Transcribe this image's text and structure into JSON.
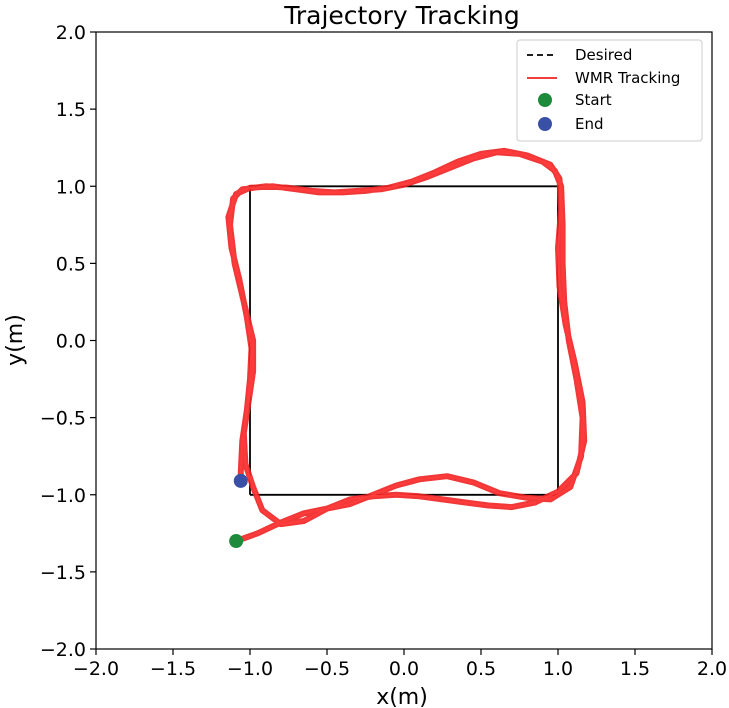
{
  "chart_data": {
    "type": "line",
    "title": "Trajectory Tracking",
    "xlabel": "x(m)",
    "ylabel": "y(m)",
    "xlim": [
      -2.0,
      2.0
    ],
    "ylim": [
      -2.0,
      2.0
    ],
    "xticks": [
      "−2.0",
      "−1.5",
      "−1.0",
      "−0.5",
      "0.0",
      "0.5",
      "1.0",
      "1.5",
      "2.0"
    ],
    "yticks": [
      "2.0",
      "1.5",
      "1.0",
      "0.5",
      "0.0",
      "−0.5",
      "−1.0",
      "−1.5",
      "−2.0"
    ],
    "grid": false,
    "legend_position": "top-right",
    "series": [
      {
        "name": "Desired",
        "style": "dashed",
        "color": "#000000",
        "points": [
          [
            -1.0,
            -1.0
          ],
          [
            1.0,
            -1.0
          ],
          [
            1.0,
            1.0
          ],
          [
            -1.0,
            1.0
          ],
          [
            -1.0,
            -1.0
          ]
        ]
      },
      {
        "name": "WMR Tracking",
        "style": "solid",
        "color": "#ee2222",
        "points": [
          [
            -1.09,
            -1.3
          ],
          [
            -0.95,
            -1.25
          ],
          [
            -0.8,
            -1.18
          ],
          [
            -0.65,
            -1.12
          ],
          [
            -0.5,
            -1.09
          ],
          [
            -0.35,
            -1.06
          ],
          [
            -0.2,
            -1.0
          ],
          [
            -0.05,
            -0.94
          ],
          [
            0.1,
            -0.9
          ],
          [
            0.28,
            -0.88
          ],
          [
            0.45,
            -0.92
          ],
          [
            0.62,
            -0.99
          ],
          [
            0.8,
            -1.02
          ],
          [
            0.95,
            -1.03
          ],
          [
            1.08,
            -0.95
          ],
          [
            1.15,
            -0.75
          ],
          [
            1.16,
            -0.5
          ],
          [
            1.12,
            -0.25
          ],
          [
            1.07,
            0.0
          ],
          [
            1.04,
            0.25
          ],
          [
            1.03,
            0.5
          ],
          [
            1.03,
            0.75
          ],
          [
            1.02,
            1.0
          ],
          [
            0.98,
            1.1
          ],
          [
            0.9,
            1.16
          ],
          [
            0.75,
            1.21
          ],
          [
            0.6,
            1.22
          ],
          [
            0.45,
            1.18
          ],
          [
            0.3,
            1.12
          ],
          [
            0.15,
            1.06
          ],
          [
            0.0,
            1.01
          ],
          [
            -0.15,
            0.98
          ],
          [
            -0.3,
            0.97
          ],
          [
            -0.45,
            0.96
          ],
          [
            -0.6,
            0.97
          ],
          [
            -0.75,
            0.99
          ],
          [
            -0.9,
            1.0
          ],
          [
            -1.05,
            0.98
          ],
          [
            -1.11,
            0.92
          ],
          [
            -1.13,
            0.75
          ],
          [
            -1.1,
            0.5
          ],
          [
            -1.04,
            0.25
          ],
          [
            -0.98,
            0.0
          ],
          [
            -0.98,
            -0.2
          ],
          [
            -1.01,
            -0.4
          ],
          [
            -1.04,
            -0.6
          ],
          [
            -1.03,
            -0.8
          ],
          [
            -0.98,
            -0.95
          ],
          [
            -0.92,
            -1.1
          ],
          [
            -0.8,
            -1.19
          ],
          [
            -0.65,
            -1.17
          ],
          [
            -0.5,
            -1.09
          ],
          [
            -0.35,
            -1.03
          ],
          [
            -0.2,
            -1.01
          ],
          [
            -0.05,
            -1.0
          ],
          [
            0.1,
            -1.01
          ],
          [
            0.25,
            -1.03
          ],
          [
            0.4,
            -1.05
          ],
          [
            0.55,
            -1.07
          ],
          [
            0.7,
            -1.08
          ],
          [
            0.85,
            -1.05
          ],
          [
            1.0,
            -0.98
          ],
          [
            1.12,
            -0.86
          ],
          [
            1.17,
            -0.65
          ],
          [
            1.16,
            -0.4
          ],
          [
            1.11,
            -0.15
          ],
          [
            1.05,
            0.1
          ],
          [
            1.01,
            0.35
          ],
          [
            1.0,
            0.6
          ],
          [
            1.02,
            0.85
          ],
          [
            1.01,
            1.05
          ],
          [
            0.95,
            1.14
          ],
          [
            0.8,
            1.2
          ],
          [
            0.65,
            1.23
          ],
          [
            0.5,
            1.21
          ],
          [
            0.35,
            1.16
          ],
          [
            0.2,
            1.09
          ],
          [
            0.05,
            1.03
          ],
          [
            -0.1,
            0.99
          ],
          [
            -0.25,
            0.97
          ],
          [
            -0.4,
            0.96
          ],
          [
            -0.55,
            0.96
          ],
          [
            -0.7,
            0.98
          ],
          [
            -0.85,
            1.0
          ],
          [
            -1.0,
            0.99
          ],
          [
            -1.09,
            0.95
          ],
          [
            -1.14,
            0.8
          ],
          [
            -1.12,
            0.6
          ],
          [
            -1.07,
            0.4
          ],
          [
            -1.02,
            0.15
          ],
          [
            -0.99,
            -0.05
          ],
          [
            -1.0,
            -0.25
          ],
          [
            -1.02,
            -0.45
          ],
          [
            -1.05,
            -0.65
          ],
          [
            -1.06,
            -0.85
          ],
          [
            -1.06,
            -0.91
          ]
        ]
      }
    ],
    "markers": [
      {
        "name": "Start",
        "x": -1.09,
        "y": -1.3,
        "color": "#1e8a3c"
      },
      {
        "name": "End",
        "x": -1.06,
        "y": -0.91,
        "color": "#3a4fa6"
      }
    ]
  }
}
